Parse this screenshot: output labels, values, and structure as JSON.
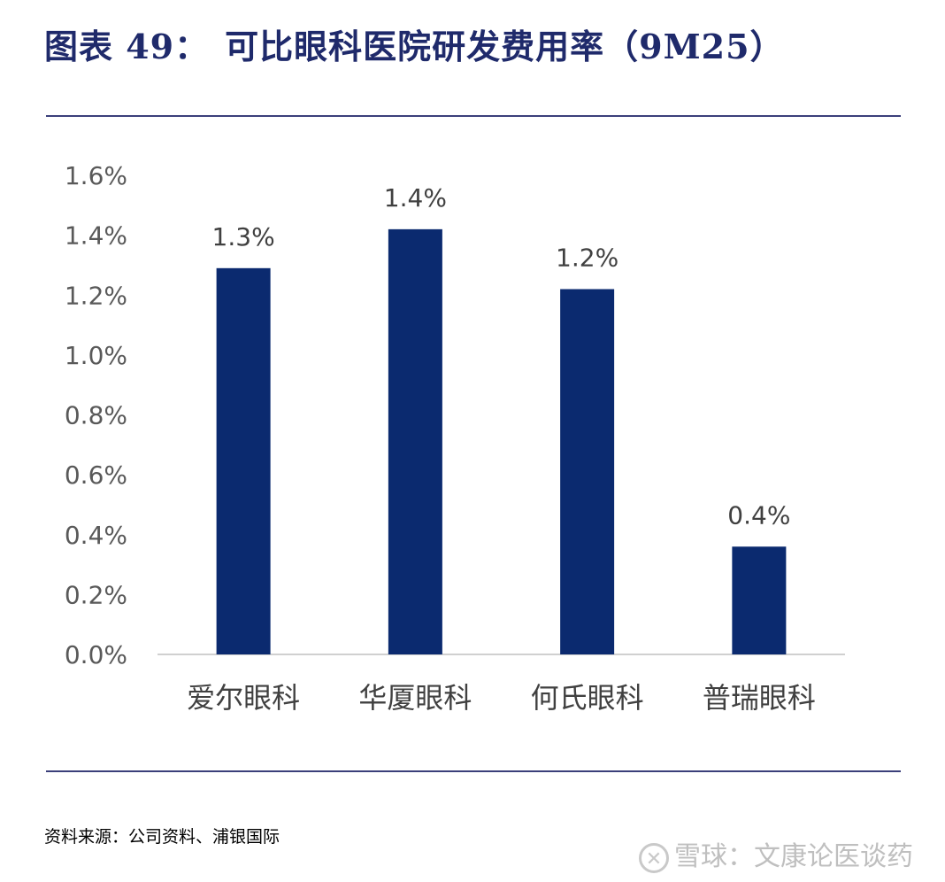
{
  "title": {
    "prefix": "图表 49：",
    "text": "可比眼科医院研发费用率（9M25）"
  },
  "source": "资料来源：公司资料、浦银国际",
  "watermark": "雪球：文康论医谈药",
  "colors": {
    "bar": "#0b2a6f",
    "title": "#1f2a6b",
    "rule": "#3b3f7a",
    "axis_text": "#595959"
  },
  "chart_data": {
    "type": "bar",
    "title": "",
    "xlabel": "",
    "ylabel": "",
    "categories": [
      "爱尔眼科",
      "华厦眼科",
      "何氏眼科",
      "普瑞眼科"
    ],
    "values": [
      0.0129,
      0.0142,
      0.0122,
      0.0036
    ],
    "data_labels": [
      "1.3%",
      "1.4%",
      "1.2%",
      "0.4%"
    ],
    "ylim": [
      0,
      0.016
    ],
    "yticks": [
      0,
      0.002,
      0.004,
      0.006,
      0.008,
      0.01,
      0.012,
      0.014,
      0.016
    ],
    "ytick_labels": [
      "0.0%",
      "0.2%",
      "0.4%",
      "0.6%",
      "0.8%",
      "1.0%",
      "1.2%",
      "1.4%",
      "1.6%"
    ],
    "grid": false,
    "legend": "none"
  }
}
